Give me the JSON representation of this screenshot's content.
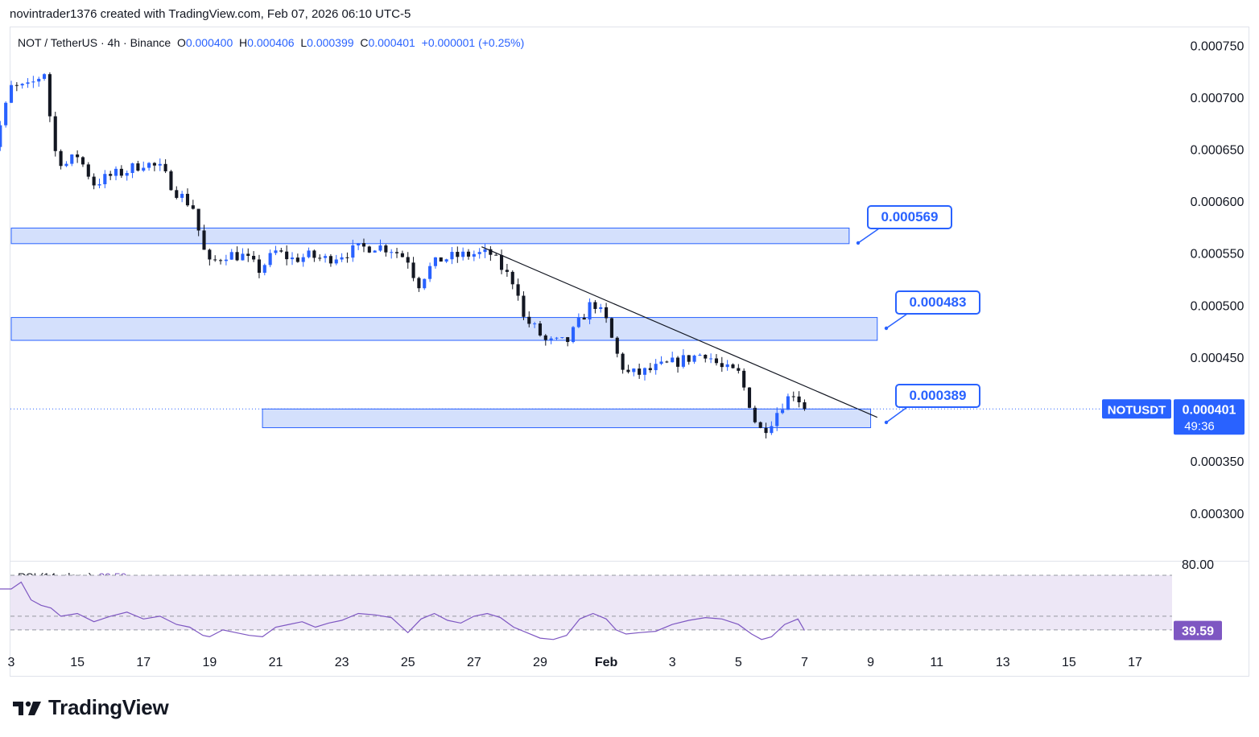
{
  "caption": "novintrader1376 created with TradingView.com, Feb 07, 2026 06:10 UTC-5",
  "legend": {
    "symbol": "NOT",
    "sep1": "/",
    "quote": "TetherUS",
    "sep2": "·",
    "interval": "4h",
    "sep3": "·",
    "exchange": "Binance",
    "o_label": "O",
    "o_val": "0.000400",
    "h_label": "H",
    "h_val": "0.000406",
    "l_label": "L",
    "l_val": "0.000399",
    "c_label": "C",
    "c_val": "0.000401",
    "change": "+0.000001 (+0.25%)"
  },
  "rsi_legend": {
    "label": "RSI (14, close)",
    "value": "39.59"
  },
  "brand": {
    "name": "TradingView"
  },
  "colors": {
    "up": "#2962ff",
    "down": "#131722",
    "zone_fill": "#d4e0fc",
    "zone_border": "#2962ff",
    "rsi_line": "#7e57c2",
    "rsi_band": "#ede7f6",
    "trendline": "#131722"
  },
  "chart_data": [
    {
      "type": "candlestick",
      "symbol": "NOTUSDT",
      "interval": "4h",
      "x_ticks": [
        "3",
        "15",
        "17",
        "19",
        "21",
        "23",
        "25",
        "27",
        "29",
        "Feb",
        "3",
        "5",
        "7",
        "9",
        "11",
        "13",
        "15",
        "17"
      ],
      "x_tick_days": [
        13,
        15,
        17,
        19,
        21,
        23,
        25,
        27,
        29,
        31,
        33,
        35,
        37,
        39,
        41,
        43,
        45,
        47
      ],
      "y_ticks": [
        "0.000750",
        "0.000700",
        "0.000650",
        "0.000600",
        "0.000550",
        "0.000500",
        "0.000450",
        "0.000400",
        "0.000350",
        "0.000300"
      ],
      "y_tick_values": [
        0.00075,
        0.0007,
        0.00065,
        0.0006,
        0.00055,
        0.0005,
        0.00045,
        0.0004,
        0.00035,
        0.0003
      ],
      "ylim": [
        0.000255,
        0.000768
      ],
      "last_price": {
        "symbol_label": "NOTUSDT",
        "price": "0.000401",
        "countdown": "49:36",
        "value": 0.000401
      },
      "zones": [
        {
          "label": "0.000569",
          "low": 0.00056,
          "high": 0.000575
        },
        {
          "label": "0.000483",
          "low": 0.000467,
          "high": 0.000489
        },
        {
          "label": "0.000389",
          "low": 0.000383,
          "high": 0.000401
        }
      ],
      "trendline": {
        "from": [
          27.23,
          0.000557
        ],
        "to": [
          39.2,
          0.000393
        ]
      },
      "anchors": [
        [
          12.0,
          0.000585
        ],
        [
          12.5,
          0.000655
        ],
        [
          13.0,
          0.00071
        ],
        [
          13.5,
          0.00071
        ],
        [
          14.0,
          0.000725
        ],
        [
          14.3,
          0.00065
        ],
        [
          14.6,
          0.000635
        ],
        [
          15.0,
          0.000645
        ],
        [
          15.5,
          0.000618
        ],
        [
          16.0,
          0.000625
        ],
        [
          16.5,
          0.00063
        ],
        [
          17.0,
          0.000638
        ],
        [
          17.5,
          0.000632
        ],
        [
          18.0,
          0.00061
        ],
        [
          18.5,
          0.000595
        ],
        [
          18.8,
          0.000555
        ],
        [
          19.0,
          0.00054
        ],
        [
          19.5,
          0.00055
        ],
        [
          20.0,
          0.000548
        ],
        [
          20.5,
          0.000535
        ],
        [
          21.0,
          0.000552
        ],
        [
          21.5,
          0.000545
        ],
        [
          22.0,
          0.000548
        ],
        [
          22.5,
          0.000545
        ],
        [
          23.0,
          0.00055
        ],
        [
          23.5,
          0.000555
        ],
        [
          24.0,
          0.000558
        ],
        [
          24.5,
          0.000555
        ],
        [
          25.0,
          0.000545
        ],
        [
          25.3,
          0.00052
        ],
        [
          25.6,
          0.000535
        ],
        [
          26.0,
          0.000545
        ],
        [
          26.5,
          0.000548
        ],
        [
          27.0,
          0.00055
        ],
        [
          27.5,
          0.00055
        ],
        [
          28.0,
          0.00053
        ],
        [
          28.3,
          0.00052
        ],
        [
          28.5,
          0.000488
        ],
        [
          28.8,
          0.00048
        ],
        [
          29.2,
          0.000465
        ],
        [
          29.8,
          0.000465
        ],
        [
          30.2,
          0.000485
        ],
        [
          30.6,
          0.000505
        ],
        [
          31.0,
          0.000485
        ],
        [
          31.3,
          0.000455
        ],
        [
          31.6,
          0.000435
        ],
        [
          32.0,
          0.000435
        ],
        [
          32.5,
          0.00044
        ],
        [
          33.0,
          0.000445
        ],
        [
          33.5,
          0.00045
        ],
        [
          34.0,
          0.000455
        ],
        [
          34.5,
          0.00044
        ],
        [
          35.0,
          0.000435
        ],
        [
          35.3,
          0.00041
        ],
        [
          35.6,
          0.00038
        ],
        [
          35.9,
          0.000385
        ],
        [
          36.3,
          0.000405
        ],
        [
          36.7,
          0.000418
        ],
        [
          37.0,
          0.000401
        ]
      ],
      "rsi": {
        "levels": [
          80,
          50,
          40
        ],
        "ylim": [
          27,
          90
        ],
        "last": 39.59,
        "points": [
          [
            12.0,
            62
          ],
          [
            12.3,
            68
          ],
          [
            12.6,
            70
          ],
          [
            13.0,
            70
          ],
          [
            13.3,
            75
          ],
          [
            13.6,
            62
          ],
          [
            13.9,
            58
          ],
          [
            14.2,
            56
          ],
          [
            14.5,
            50
          ],
          [
            15.0,
            52
          ],
          [
            15.5,
            46
          ],
          [
            16.0,
            50
          ],
          [
            16.5,
            53
          ],
          [
            17.0,
            48
          ],
          [
            17.5,
            50
          ],
          [
            18.0,
            44
          ],
          [
            18.4,
            42
          ],
          [
            18.8,
            36
          ],
          [
            19.0,
            35
          ],
          [
            19.4,
            40
          ],
          [
            19.8,
            38
          ],
          [
            20.2,
            36
          ],
          [
            20.6,
            35
          ],
          [
            21.0,
            42
          ],
          [
            21.4,
            44
          ],
          [
            21.8,
            46
          ],
          [
            22.2,
            42
          ],
          [
            22.6,
            45
          ],
          [
            23.0,
            47
          ],
          [
            23.5,
            52
          ],
          [
            24.0,
            51
          ],
          [
            24.5,
            49
          ],
          [
            25.0,
            38
          ],
          [
            25.4,
            48
          ],
          [
            25.8,
            52
          ],
          [
            26.2,
            47
          ],
          [
            26.6,
            45
          ],
          [
            27.0,
            50
          ],
          [
            27.4,
            52
          ],
          [
            27.8,
            49
          ],
          [
            28.2,
            42
          ],
          [
            28.6,
            38
          ],
          [
            29.0,
            34
          ],
          [
            29.4,
            33
          ],
          [
            29.8,
            36
          ],
          [
            30.2,
            48
          ],
          [
            30.6,
            52
          ],
          [
            31.0,
            48
          ],
          [
            31.3,
            40
          ],
          [
            31.6,
            37
          ],
          [
            32.0,
            38
          ],
          [
            32.5,
            39
          ],
          [
            33.0,
            44
          ],
          [
            33.5,
            47
          ],
          [
            34.0,
            49
          ],
          [
            34.5,
            48
          ],
          [
            35.0,
            44
          ],
          [
            35.4,
            37
          ],
          [
            35.7,
            33
          ],
          [
            36.0,
            35
          ],
          [
            36.4,
            44
          ],
          [
            36.8,
            48
          ],
          [
            37.0,
            39.59
          ]
        ]
      }
    }
  ]
}
